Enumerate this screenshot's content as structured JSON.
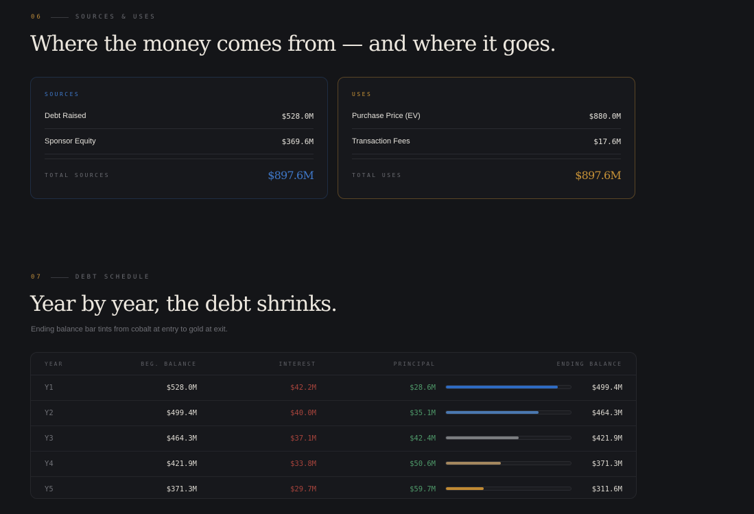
{
  "section6": {
    "number": "06",
    "label": "SOURCES & USES",
    "headline": "Where the money comes from — and where it goes.",
    "sources": {
      "title": "SOURCES",
      "items": [
        {
          "label": "Debt Raised",
          "amount": "$528.0M"
        },
        {
          "label": "Sponsor Equity",
          "amount": "$369.6M"
        }
      ],
      "total_label": "TOTAL SOURCES",
      "total_value": "$897.6M",
      "accent": "#3f78c9"
    },
    "uses": {
      "title": "USES",
      "items": [
        {
          "label": "Purchase Price (EV)",
          "amount": "$880.0M"
        },
        {
          "label": "Transaction Fees",
          "amount": "$17.6M"
        }
      ],
      "total_label": "TOTAL USES",
      "total_value": "$897.6M",
      "accent": "#c79237"
    }
  },
  "section7": {
    "number": "07",
    "label": "DEBT SCHEDULE",
    "headline": "Year by year, the debt shrinks.",
    "subtitle": "Ending balance bar tints from cobalt at entry to gold at exit.",
    "columns": {
      "year": "YEAR",
      "beg": "BEG. BALANCE",
      "interest": "INTEREST",
      "principal": "PRINCIPAL",
      "ending": "ENDING BALANCE"
    },
    "rows": [
      {
        "year": "Y1",
        "beg": "$528.0M",
        "interest": "$42.2M",
        "principal": "$28.6M",
        "ending": "$499.4M",
        "bar_fraction": 0.895,
        "bar_color": "#2f6bc2"
      },
      {
        "year": "Y2",
        "beg": "$499.4M",
        "interest": "$40.0M",
        "principal": "$35.1M",
        "ending": "$464.3M",
        "bar_fraction": 0.74,
        "bar_color": "#4a78b0"
      },
      {
        "year": "Y3",
        "beg": "$464.3M",
        "interest": "$37.1M",
        "principal": "$42.4M",
        "ending": "$421.9M",
        "bar_fraction": 0.585,
        "bar_color": "#7b7d80"
      },
      {
        "year": "Y4",
        "beg": "$421.9M",
        "interest": "$33.8M",
        "principal": "$50.6M",
        "ending": "$371.3M",
        "bar_fraction": 0.44,
        "bar_color": "#a4875e"
      },
      {
        "year": "Y5",
        "beg": "$371.3M",
        "interest": "$29.7M",
        "principal": "$59.7M",
        "ending": "$311.6M",
        "bar_fraction": 0.3,
        "bar_color": "#c18a33"
      }
    ]
  }
}
